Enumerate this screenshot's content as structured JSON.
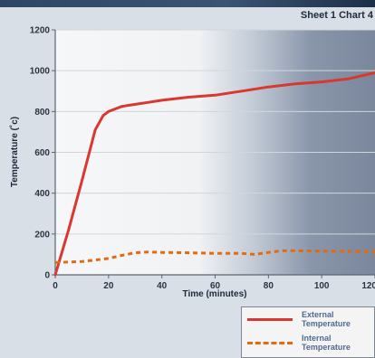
{
  "header": {
    "sheet_label": "Sheet 1 Chart 4"
  },
  "colors": {
    "external": "#d8382f",
    "internal": "#e36a0e",
    "gridline": "#d2d6dc",
    "axis": "#5b6573"
  },
  "chart_data": {
    "type": "line",
    "title": "",
    "xlabel": "Time (minutes)",
    "ylabel": "Temperature (˚c)",
    "xlim": [
      0,
      120
    ],
    "ylim": [
      0,
      1200
    ],
    "xticks": [
      0,
      20,
      40,
      60,
      80,
      100,
      120
    ],
    "yticks": [
      0,
      200,
      400,
      600,
      800,
      1000,
      1200
    ],
    "grid": true,
    "legend": "bottom-right",
    "series": [
      {
        "name": "External Temperature",
        "style": "solid",
        "x": [
          0,
          5,
          10,
          15,
          18,
          20,
          25,
          30,
          35,
          40,
          50,
          60,
          70,
          80,
          90,
          100,
          110,
          120
        ],
        "y": [
          0,
          220,
          460,
          710,
          780,
          800,
          825,
          835,
          845,
          855,
          870,
          880,
          900,
          920,
          935,
          945,
          960,
          990
        ]
      },
      {
        "name": "Internal Temperature",
        "style": "dashed",
        "x": [
          0,
          10,
          20,
          25,
          30,
          35,
          40,
          50,
          60,
          70,
          75,
          80,
          85,
          90,
          100,
          110,
          120
        ],
        "y": [
          60,
          65,
          80,
          95,
          108,
          112,
          110,
          108,
          105,
          105,
          100,
          110,
          118,
          118,
          117,
          115,
          113
        ]
      }
    ]
  }
}
